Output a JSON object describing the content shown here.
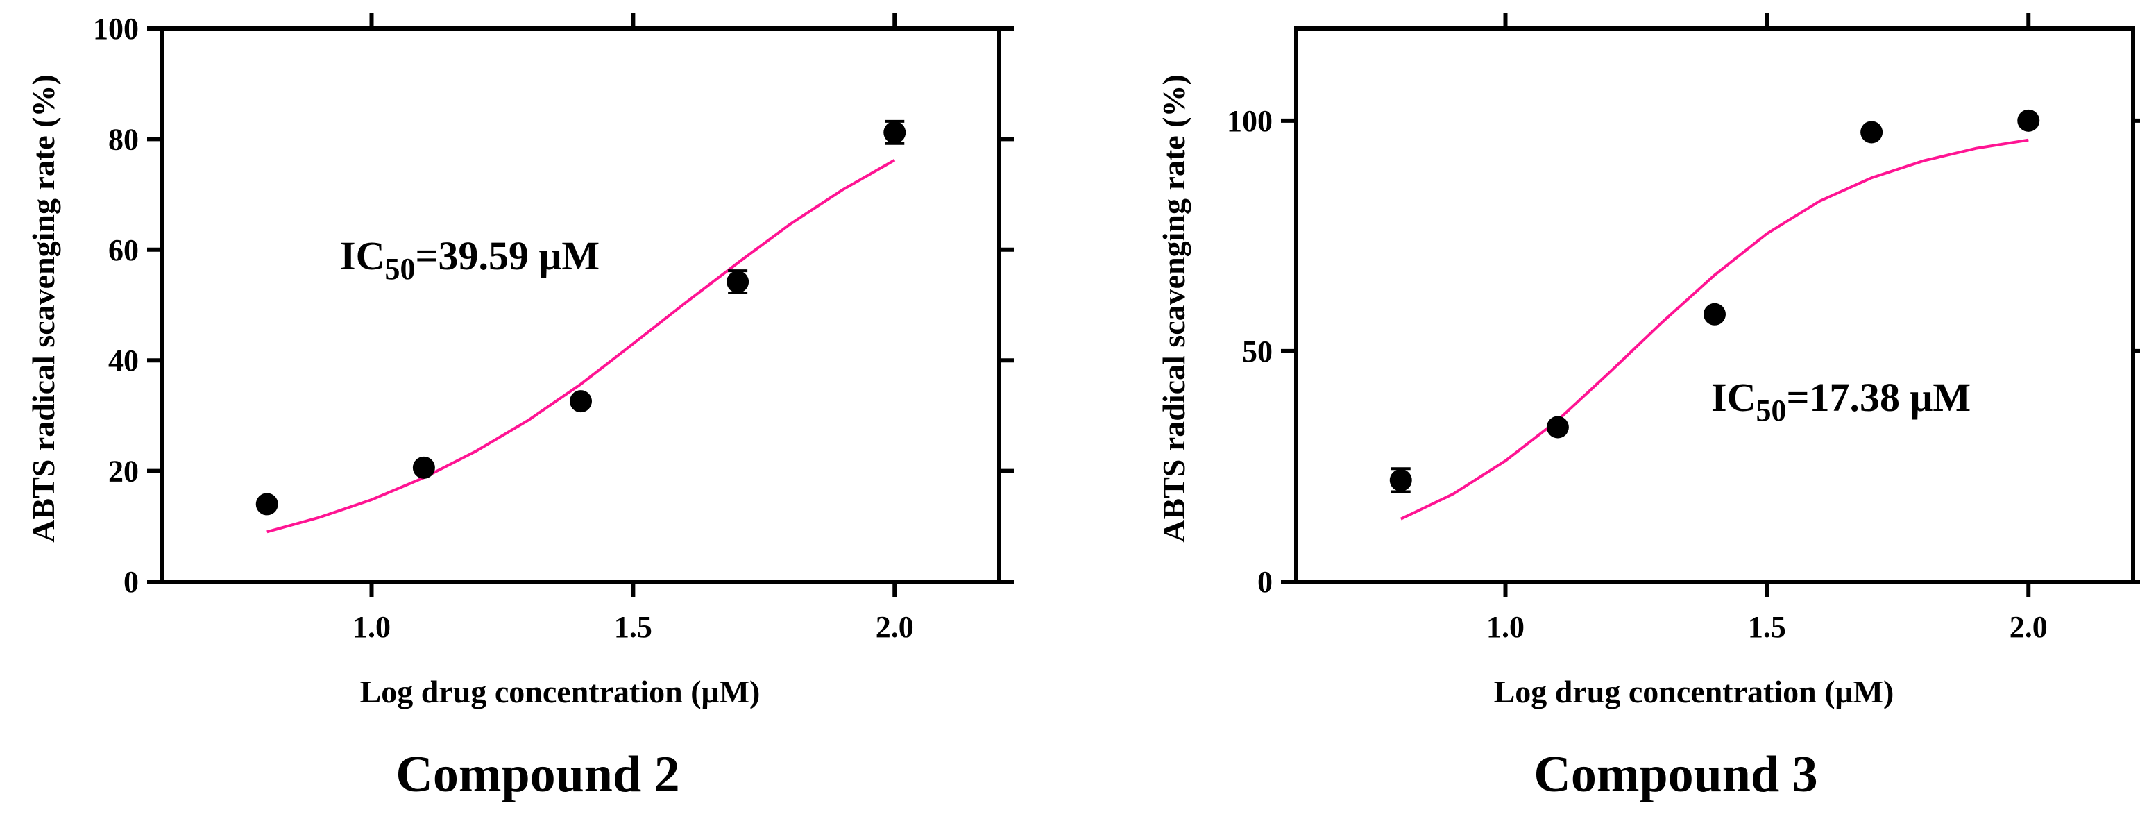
{
  "chart_data": [
    {
      "type": "scatter",
      "caption": "Compound 2",
      "xlabel": "Log drug concentration (μM)",
      "ylabel": "ABTS radical scavenging rate (%)",
      "xlim": [
        0.6,
        2.2
      ],
      "ylim": [
        0,
        100
      ],
      "x_ticks": [
        "1.0",
        "1.5",
        "2.0"
      ],
      "y_ticks": [
        "0",
        "20",
        "40",
        "60",
        "80",
        "100"
      ],
      "annotation": {
        "prefix": "IC",
        "subscript": "50",
        "suffix": "=39.59 μM"
      },
      "series": [
        {
          "points": [
            {
              "x": 0.8,
              "y": 14.0,
              "err": 0.8
            },
            {
              "x": 1.1,
              "y": 20.6,
              "err": 0.8
            },
            {
              "x": 1.4,
              "y": 32.6,
              "err": 1.0
            },
            {
              "x": 1.7,
              "y": 54.2,
              "err": 2.0
            },
            {
              "x": 2.0,
              "y": 81.2,
              "err": 2.0
            }
          ]
        }
      ],
      "fit_curve": {
        "color": "#ff1493",
        "x": [
          0.8,
          0.9,
          1.0,
          1.1,
          1.2,
          1.3,
          1.4,
          1.5,
          1.6,
          1.7,
          1.8,
          1.9,
          2.0
        ],
        "y": [
          9.0,
          11.6,
          14.8,
          18.8,
          23.6,
          29.2,
          35.7,
          43.0,
          50.4,
          57.6,
          64.6,
          70.8,
          76.2
        ]
      }
    },
    {
      "type": "scatter",
      "caption": "Compound 3",
      "xlabel": "Log drug concentration (μM)",
      "ylabel": "ABTS radical scavenging rate (%)",
      "xlim": [
        0.6,
        2.2
      ],
      "ylim": [
        0,
        120
      ],
      "x_ticks": [
        "1.0",
        "1.5",
        "2.0"
      ],
      "y_ticks": [
        "0",
        "50",
        "100"
      ],
      "annotation": {
        "prefix": "IC",
        "subscript": "50",
        "suffix": "=17.38 μM"
      },
      "series": [
        {
          "points": [
            {
              "x": 0.8,
              "y": 22.0,
              "err": 2.5
            },
            {
              "x": 1.1,
              "y": 33.5,
              "err": 1.0
            },
            {
              "x": 1.4,
              "y": 58.0,
              "err": 1.0
            },
            {
              "x": 1.7,
              "y": 97.5,
              "err": 1.0
            },
            {
              "x": 2.0,
              "y": 100.0,
              "err": 1.0
            }
          ]
        }
      ],
      "fit_curve": {
        "color": "#ff1493",
        "x": [
          0.8,
          0.9,
          1.0,
          1.1,
          1.2,
          1.3,
          1.4,
          1.5,
          1.6,
          1.7,
          1.8,
          1.9,
          2.0
        ],
        "y": [
          13.6,
          19.0,
          26.2,
          35.0,
          45.5,
          56.3,
          66.5,
          75.5,
          82.5,
          87.6,
          91.3,
          94.0,
          95.8
        ]
      }
    }
  ]
}
